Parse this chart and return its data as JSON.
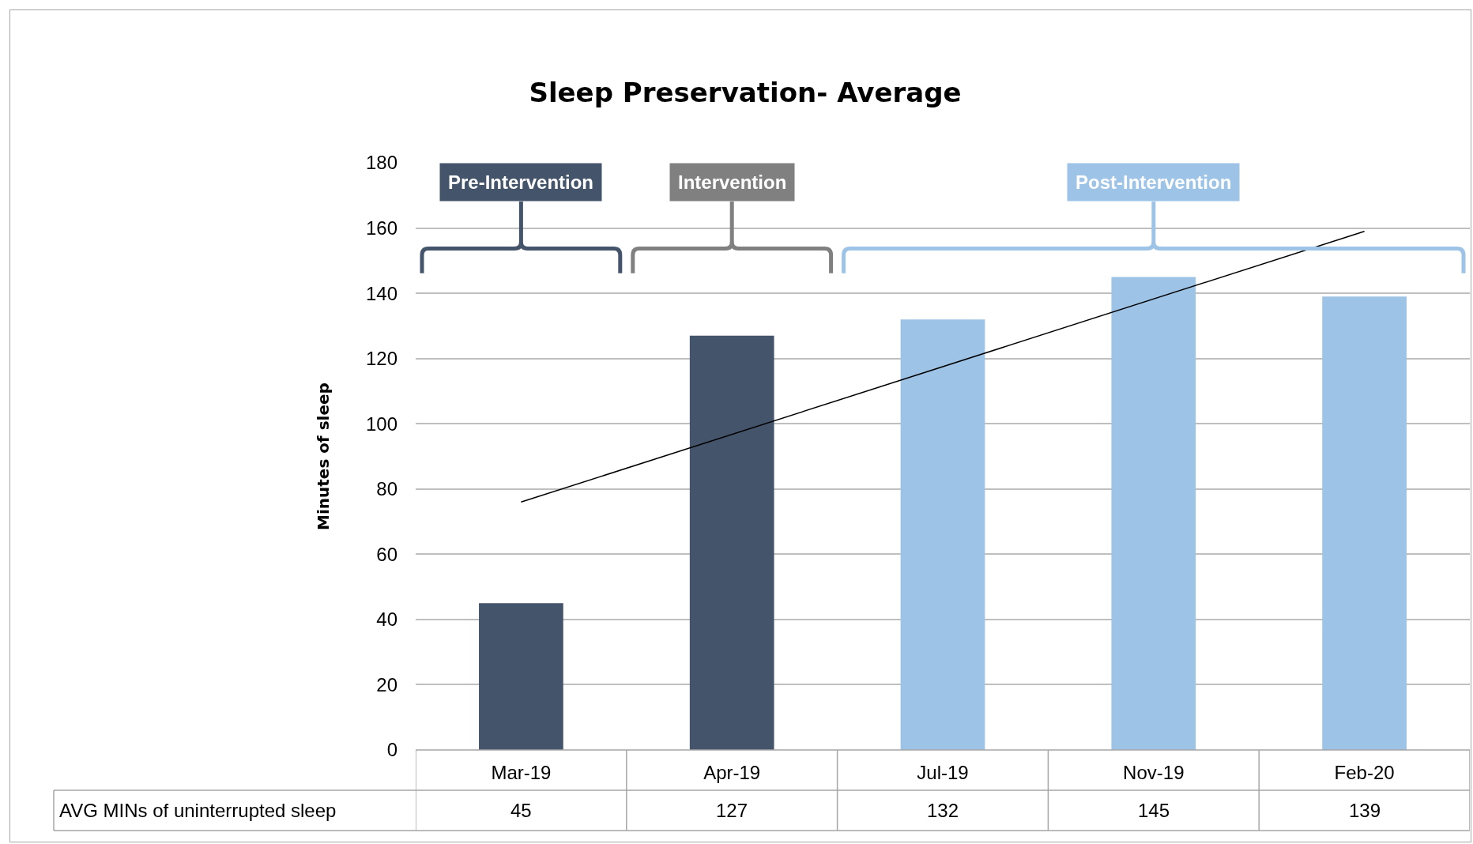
{
  "chart_data": {
    "type": "bar",
    "title": "Sleep Preservation- Average",
    "ylabel": "Minutes of sleep",
    "categories": [
      "Mar-19",
      "Apr-19",
      "Jul-19",
      "Nov-19",
      "Feb-20"
    ],
    "series": [
      {
        "colors": [
          "#44546a",
          "#44546a",
          "#9dc3e6",
          "#9dc3e6",
          "#9dc3e6"
        ],
        "values": [
          45,
          127,
          132,
          145,
          139
        ],
        "value_labels": [
          "45",
          "127",
          "132",
          "145",
          "139"
        ]
      },
      {
        "type": "line",
        "color": "#000000",
        "x": [
          "Mar-19",
          "Feb-20"
        ],
        "values": [
          76,
          159
        ]
      }
    ],
    "ylim": [
      0,
      180
    ],
    "yticks": [
      0,
      20,
      40,
      60,
      80,
      100,
      120,
      140,
      160,
      180
    ],
    "annotations": [
      "AVG MINs of uninterrupted sleep",
      "Pre-Intervention",
      "Intervention",
      "Post-Intervention"
    ],
    "grid": "y"
  }
}
